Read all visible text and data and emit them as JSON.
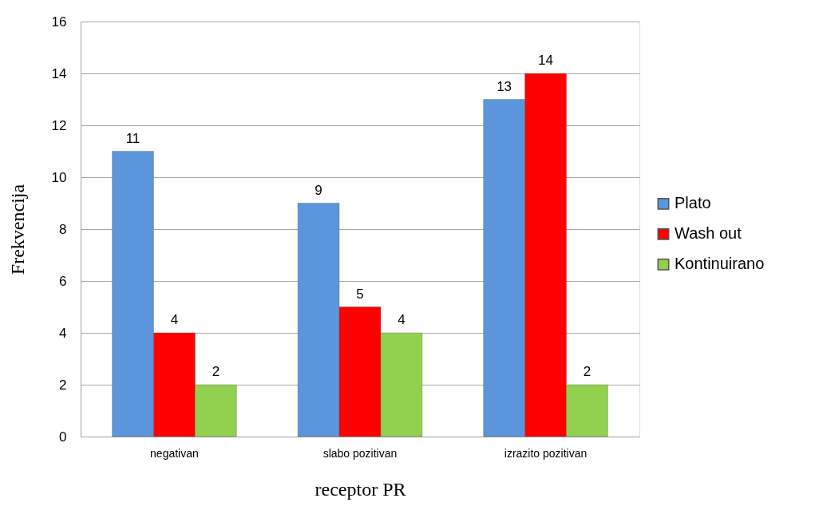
{
  "chart_data": {
    "type": "bar",
    "xlabel": "receptor PR",
    "ylabel": "Frekvencija",
    "categories": [
      "negativan",
      "slabo pozitivan",
      "izrazito pozitivan"
    ],
    "series": [
      {
        "name": "Plato",
        "color": "#5b96dc",
        "values": [
          11,
          9,
          13
        ]
      },
      {
        "name": "Wash out",
        "color": "#ff0000",
        "values": [
          4,
          5,
          14
        ]
      },
      {
        "name": "Kontinuirano",
        "color": "#92d050",
        "values": [
          2,
          4,
          2
        ]
      }
    ],
    "ylim": [
      0,
      16
    ],
    "yticks": [
      0,
      2,
      4,
      6,
      8,
      10,
      12,
      14,
      16
    ],
    "grid": "y",
    "legend": "right",
    "data_labels": true
  }
}
